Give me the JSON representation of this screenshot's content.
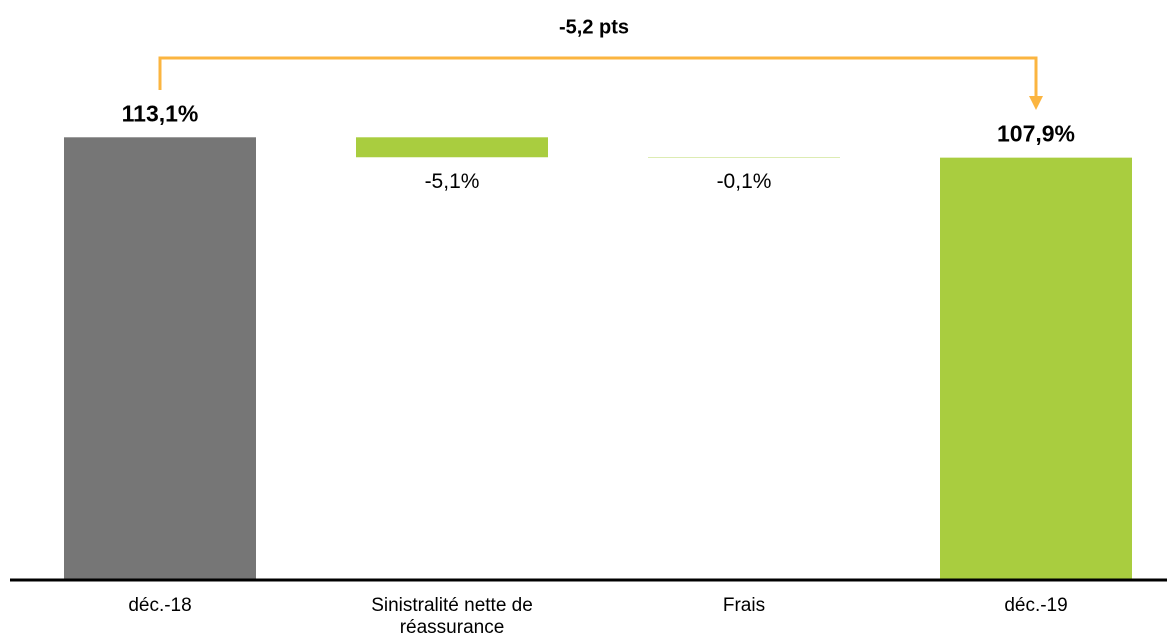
{
  "chart_data": {
    "type": "waterfall",
    "annotation": "-5,2 pts",
    "categories": [
      "déc.-18",
      "Sinistralité nette de réassurance",
      "Frais",
      "déc.-19"
    ],
    "values": [
      113.1,
      -5.1,
      -0.1,
      107.9
    ],
    "value_labels": [
      "113,1%",
      "-5,1%",
      "-0,1%",
      "107,9%"
    ],
    "totals": [
      true,
      false,
      false,
      true
    ],
    "colors": [
      "#767676",
      "#a9cd3f",
      "#a9cd3f",
      "#a9cd3f"
    ],
    "annotation_color": "#fbb540",
    "ylim": [
      0,
      140
    ]
  }
}
